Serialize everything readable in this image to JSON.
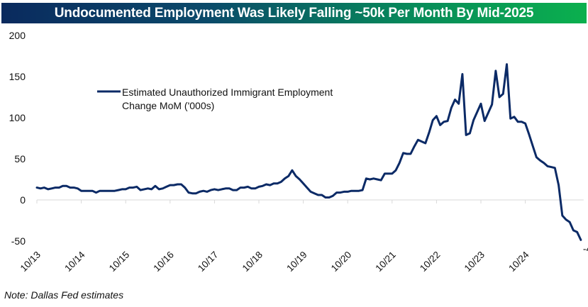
{
  "chart_data": {
    "type": "line",
    "title": "Undocumented Employment Was Likely Falling ~50k Per Month By Mid-2025",
    "xlabel": "",
    "ylabel": "",
    "ylim": [
      -50,
      200
    ],
    "yticks": [
      200,
      150,
      100,
      50,
      0,
      -50
    ],
    "xtick_labels": [
      "10/13",
      "10/14",
      "10/15",
      "10/16",
      "10/17",
      "10/18",
      "10/19",
      "10/20",
      "10/21",
      "10/22",
      "10/23",
      "10/24"
    ],
    "grid": false,
    "legend": {
      "position": "upper-left",
      "entries": [
        "Estimated Unauthorized Immigrant Employment Change MoM ('000s)"
      ]
    },
    "legend_lines": [
      "Estimated Unauthorized Immigrant Employment",
      "Change MoM ('000s)"
    ],
    "end_label": "-48.6",
    "note": "Note: Dallas Fed estimates",
    "series": [
      {
        "name": "Estimated Unauthorized Immigrant Employment Change MoM ('000s)",
        "color": "#0b2a66",
        "start": "10/13",
        "frequency": "monthly",
        "values": [
          15,
          14,
          15,
          13,
          14,
          15,
          15,
          17,
          17,
          15,
          15,
          14,
          11,
          11,
          11,
          11,
          9,
          11,
          11,
          11,
          11,
          11,
          12,
          13,
          13,
          15,
          15,
          16,
          12,
          13,
          14,
          13,
          17,
          13,
          14,
          16,
          18,
          18,
          19,
          19,
          15,
          9,
          8,
          8,
          10,
          11,
          10,
          12,
          13,
          12,
          13,
          14,
          14,
          12,
          12,
          15,
          15,
          16,
          14,
          14,
          16,
          17,
          19,
          18,
          20,
          20,
          22,
          26,
          29,
          36,
          29,
          25,
          20,
          15,
          10,
          8,
          6,
          6,
          3,
          3,
          5,
          9,
          9,
          10,
          10,
          11,
          11,
          11,
          12,
          26,
          25,
          26,
          25,
          24,
          32,
          32,
          32,
          36,
          45,
          57,
          56,
          56,
          65,
          73,
          71,
          69,
          82,
          97,
          102,
          91,
          95,
          96,
          112,
          122,
          117,
          153,
          79,
          81,
          97,
          107,
          117,
          96,
          106,
          116,
          157,
          125,
          129,
          165,
          99,
          101,
          95,
          95,
          93,
          80,
          66,
          52,
          48,
          45,
          41,
          40,
          39,
          18,
          -19,
          -24,
          -27,
          -37,
          -39,
          -48.6
        ]
      }
    ]
  }
}
